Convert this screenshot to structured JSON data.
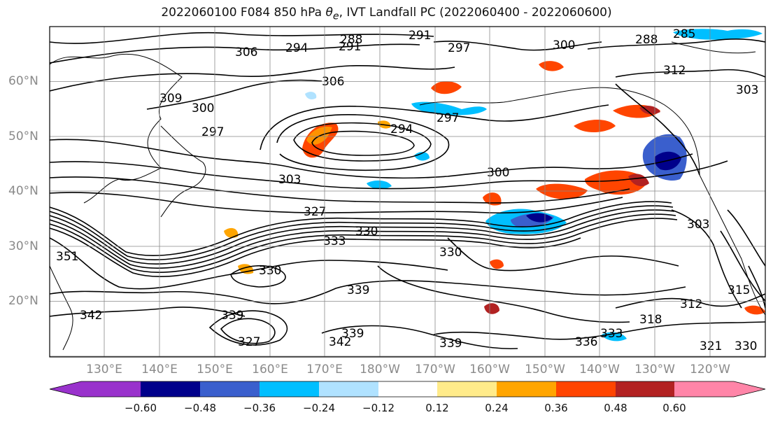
{
  "title": {
    "prefix": "2022060100 F084 850 hPa ",
    "theta": "θ",
    "theta_sub": "e",
    "suffix": ", IVT Landfall PC (2022060400 - 2022060600)"
  },
  "map": {
    "lat_labels": [
      "60°N",
      "50°N",
      "40°N",
      "30°N",
      "20°N"
    ],
    "lon_labels": [
      "130°E",
      "140°E",
      "150°E",
      "160°E",
      "170°E",
      "180°W",
      "170°W",
      "160°W",
      "150°W",
      "140°W",
      "130°W",
      "120°W"
    ],
    "contour_labels": [
      {
        "text": "288",
        "id": "c288a"
      },
      {
        "text": "291",
        "id": "c291a"
      },
      {
        "text": "291",
        "id": "c291b"
      },
      {
        "text": "306",
        "id": "c306a"
      },
      {
        "text": "294",
        "id": "c294a"
      },
      {
        "text": "297",
        "id": "c297a"
      },
      {
        "text": "300",
        "id": "c300a"
      },
      {
        "text": "288",
        "id": "c288b"
      },
      {
        "text": "285",
        "id": "c285a"
      },
      {
        "text": "312",
        "id": "c312a"
      },
      {
        "text": "303",
        "id": "c303a"
      },
      {
        "text": "309",
        "id": "c309a"
      },
      {
        "text": "300",
        "id": "c300b"
      },
      {
        "text": "297",
        "id": "c297b"
      },
      {
        "text": "306",
        "id": "c306b"
      },
      {
        "text": "294",
        "id": "c294b"
      },
      {
        "text": "297",
        "id": "c297c"
      },
      {
        "text": "300",
        "id": "c300c"
      },
      {
        "text": "303",
        "id": "c303b"
      },
      {
        "text": "327",
        "id": "c327a"
      },
      {
        "text": "330",
        "id": "c330a"
      },
      {
        "text": "333",
        "id": "c333a"
      },
      {
        "text": "330",
        "id": "c330b"
      },
      {
        "text": "303",
        "id": "c303c"
      },
      {
        "text": "351",
        "id": "c351a"
      },
      {
        "text": "330",
        "id": "c330c"
      },
      {
        "text": "339",
        "id": "c339a"
      },
      {
        "text": "342",
        "id": "c342a"
      },
      {
        "text": "339",
        "id": "c339b"
      },
      {
        "text": "327",
        "id": "c327b"
      },
      {
        "text": "339",
        "id": "c339c"
      },
      {
        "text": "342",
        "id": "c342b"
      },
      {
        "text": "339",
        "id": "c339d"
      },
      {
        "text": "336",
        "id": "c336a"
      },
      {
        "text": "333",
        "id": "c333b"
      },
      {
        "text": "318",
        "id": "c318a"
      },
      {
        "text": "312",
        "id": "c312b"
      },
      {
        "text": "315",
        "id": "c315a"
      },
      {
        "text": "321",
        "id": "c321a"
      },
      {
        "text": "330",
        "id": "c330d"
      }
    ]
  },
  "colorbar": {
    "tick_labels": [
      "−0.60",
      "−0.48",
      "−0.36",
      "−0.24",
      "−0.12",
      "0.12",
      "0.24",
      "0.36",
      "0.48",
      "0.60"
    ],
    "colors": [
      "#9932cc",
      "#00008b",
      "#3a5fcd",
      "#00bfff",
      "#b0e2ff",
      "#ffffff",
      "#ffeb8a",
      "#ffa500",
      "#ff4500",
      "#b22222",
      "#ff85a8"
    ]
  }
}
